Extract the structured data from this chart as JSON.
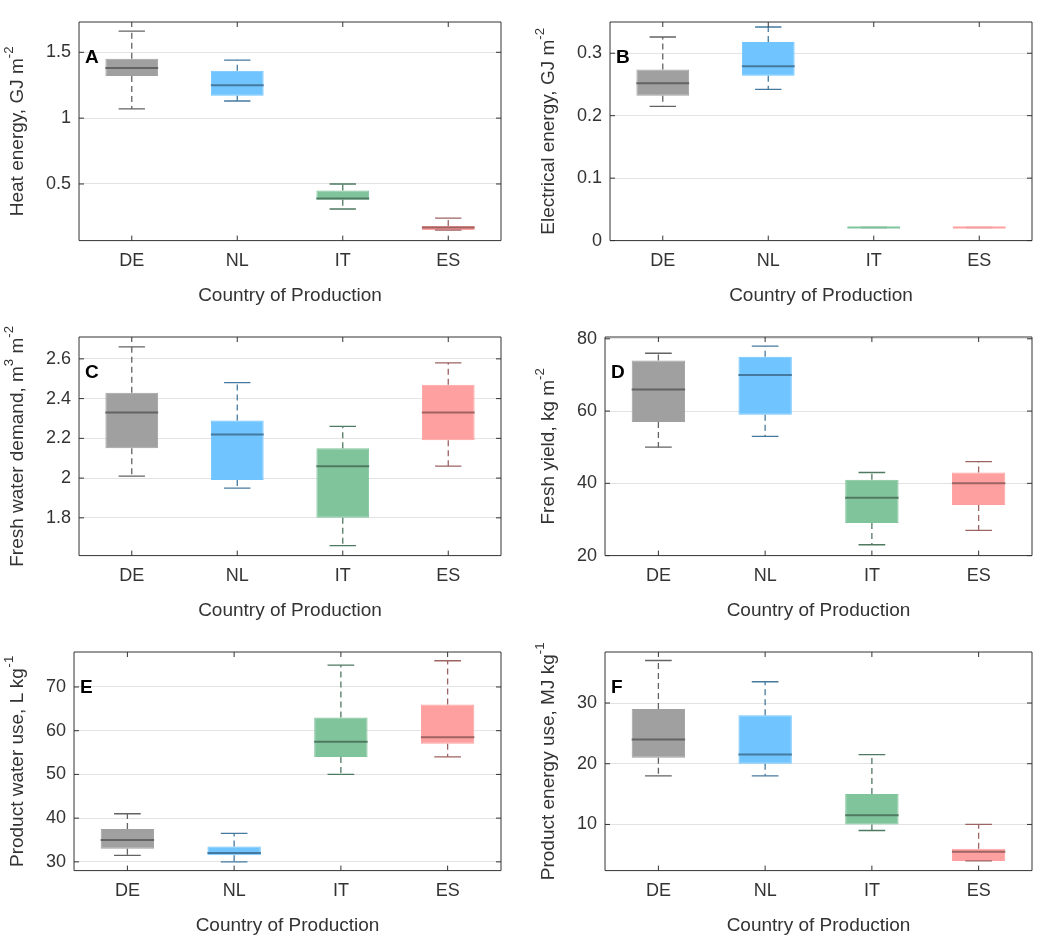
{
  "chart_data": [
    {
      "type": "box",
      "categories": [
        "DE",
        "NL",
        "IT",
        "ES"
      ],
      "xlabel": "Country of Production",
      "ylabel": "Heat energy, GJ m$^{-2}$",
      "annotations": [
        "A"
      ],
      "ylim": [
        0.07,
        1.73
      ],
      "yticks": [
        0.5,
        1,
        1.5
      ],
      "grid": "y",
      "line_style": "dashed",
      "colors": [
        "#a0a0a0",
        "#70c4ff",
        "#80c49c",
        "#ffa0a0"
      ],
      "boxes": [
        {
          "low": 1.07,
          "q1": 1.32,
          "median": 1.38,
          "q3": 1.45,
          "high": 1.66
        },
        {
          "low": 1.13,
          "q1": 1.17,
          "median": 1.25,
          "q3": 1.36,
          "high": 1.44
        },
        {
          "low": 0.31,
          "q1": 0.38,
          "median": 0.39,
          "q3": 0.45,
          "high": 0.5
        },
        {
          "low": 0.15,
          "q1": 0.15,
          "median": 0.17,
          "q3": 0.18,
          "high": 0.24
        }
      ]
    },
    {
      "type": "box",
      "categories": [
        "DE",
        "NL",
        "IT",
        "ES"
      ],
      "xlabel": "Country of Production",
      "ylabel": "Electrical energy, GJ m$^{-2}$",
      "annotations": [
        "B"
      ],
      "ylim": [
        0,
        0.35
      ],
      "yticks": [
        0,
        0.1,
        0.2,
        0.3
      ],
      "grid": "y",
      "line_style": "dashed",
      "colors": [
        "#a0a0a0",
        "#70c4ff",
        "#80c49c",
        "#ffa0a0"
      ],
      "boxes": [
        {
          "low": 0.215,
          "q1": 0.232,
          "median": 0.252,
          "q3": 0.274,
          "high": 0.326
        },
        {
          "low": 0.242,
          "q1": 0.264,
          "median": 0.279,
          "q3": 0.318,
          "high": 0.342
        },
        {
          "low": 0.021,
          "q1": 0.021,
          "median": 0.021,
          "q3": 0.021,
          "high": 0.021
        },
        {
          "low": 0.021,
          "q1": 0.021,
          "median": 0.021,
          "q3": 0.021,
          "high": 0.021
        }
      ]
    },
    {
      "type": "box",
      "categories": [
        "DE",
        "NL",
        "IT",
        "ES"
      ],
      "xlabel": "Country of Production",
      "ylabel": "Fresh water demand, m$^{3}$ m$^{-2}$",
      "annotations": [
        "C"
      ],
      "ylim": [
        1.61,
        2.71
      ],
      "yticks": [
        1.8,
        2,
        2.2,
        2.4,
        2.6
      ],
      "grid": "y",
      "line_style": "dashed",
      "colors": [
        "#a0a0a0",
        "#70c4ff",
        "#80c49c",
        "#ffa0a0"
      ],
      "boxes": [
        {
          "low": 2.01,
          "q1": 2.15,
          "median": 2.33,
          "q3": 2.43,
          "high": 2.66
        },
        {
          "low": 1.95,
          "q1": 1.99,
          "median": 2.22,
          "q3": 2.29,
          "high": 2.48
        },
        {
          "low": 1.66,
          "q1": 1.8,
          "median": 2.06,
          "q3": 2.15,
          "high": 2.26
        },
        {
          "low": 2.06,
          "q1": 2.19,
          "median": 2.33,
          "q3": 2.47,
          "high": 2.58
        }
      ]
    },
    {
      "type": "box",
      "categories": [
        "DE",
        "NL",
        "IT",
        "ES"
      ],
      "xlabel": "Country of Production",
      "ylabel": "Fresh yield, kg m$^{-2}$",
      "annotations": [
        "D"
      ],
      "ylim": [
        20,
        80.5
      ],
      "yticks": [
        20,
        40,
        60,
        80
      ],
      "grid": "y",
      "line_style": "dashed",
      "colors": [
        "#a0a0a0",
        "#70c4ff",
        "#80c49c",
        "#ffa0a0"
      ],
      "boxes": [
        {
          "low": 50,
          "q1": 57,
          "median": 66,
          "q3": 74,
          "high": 76
        },
        {
          "low": 53,
          "q1": 59,
          "median": 70,
          "q3": 75,
          "high": 78
        },
        {
          "low": 23,
          "q1": 29,
          "median": 36,
          "q3": 41,
          "high": 43
        },
        {
          "low": 27,
          "q1": 34,
          "median": 40,
          "q3": 43,
          "high": 46
        }
      ]
    },
    {
      "type": "box",
      "categories": [
        "DE",
        "NL",
        "IT",
        "ES"
      ],
      "xlabel": "Country of Production",
      "ylabel": "Product water use, L kg$^{-1}$",
      "annotations": [
        "E"
      ],
      "ylim": [
        28,
        78
      ],
      "yticks": [
        30,
        40,
        50,
        60,
        70
      ],
      "grid": "y",
      "line_style": "dashed",
      "colors": [
        "#a0a0a0",
        "#70c4ff",
        "#80c49c",
        "#ffa0a0"
      ],
      "boxes": [
        {
          "low": 31.5,
          "q1": 33,
          "median": 35,
          "q3": 37.5,
          "high": 41
        },
        {
          "low": 30,
          "q1": 31.5,
          "median": 32,
          "q3": 33.5,
          "high": 36.5
        },
        {
          "low": 50,
          "q1": 54,
          "median": 57.5,
          "q3": 63,
          "high": 75
        },
        {
          "low": 54,
          "q1": 57,
          "median": 58.5,
          "q3": 66,
          "high": 76
        }
      ]
    },
    {
      "type": "box",
      "categories": [
        "DE",
        "NL",
        "IT",
        "ES"
      ],
      "xlabel": "Country of Production",
      "ylabel": "Product energy use, MJ kg$^{-1}$",
      "annotations": [
        "F"
      ],
      "ylim": [
        2.4,
        38.4
      ],
      "yticks": [
        10,
        20,
        30
      ],
      "grid": "y",
      "line_style": "dashed",
      "colors": [
        "#a0a0a0",
        "#70c4ff",
        "#80c49c",
        "#ffa0a0"
      ],
      "boxes": [
        {
          "low": 18,
          "q1": 21,
          "median": 24,
          "q3": 29,
          "high": 37
        },
        {
          "low": 18,
          "q1": 20,
          "median": 21.5,
          "q3": 28,
          "high": 33.5
        },
        {
          "low": 9,
          "q1": 10,
          "median": 11.5,
          "q3": 15,
          "high": 21.5
        },
        {
          "low": 4,
          "q1": 4,
          "median": 5.5,
          "q3": 6,
          "high": 10
        }
      ]
    }
  ]
}
